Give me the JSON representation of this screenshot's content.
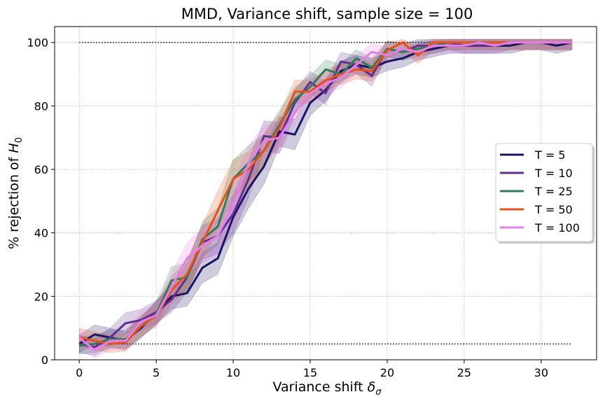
{
  "chart_data": {
    "type": "line",
    "title": "MMD, Variance shift, sample size = 100",
    "xlabel": "Variance shift",
    "xlabel_symbol": "δ",
    "xlabel_subscript": "σ",
    "ylabel": "% rejection of",
    "ylabel_symbol": "H",
    "ylabel_subscript": "0",
    "xlim": [
      -1.6,
      33.6
    ],
    "ylim": [
      0,
      105
    ],
    "xticks": [
      0,
      5,
      10,
      15,
      20,
      25,
      30
    ],
    "yticks": [
      0,
      20,
      40,
      60,
      80,
      100
    ],
    "grid": true,
    "legend_position": "center-right",
    "reference_lines": [
      {
        "y": 100,
        "x": [
          0,
          32
        ],
        "style": "dotted",
        "color": "#000000"
      },
      {
        "y": 5,
        "x": [
          0,
          32
        ],
        "style": "dotted",
        "color": "#000000"
      }
    ],
    "x": [
      0,
      1,
      2,
      3,
      4,
      5,
      6,
      7,
      8,
      9,
      10,
      11,
      12,
      13,
      14,
      15,
      16,
      17,
      18,
      19,
      20,
      21,
      22,
      23,
      24,
      25,
      26,
      27,
      28,
      29,
      30,
      31,
      32
    ],
    "series": [
      {
        "name": "T = 5",
        "color": "#1a1464",
        "values": [
          5,
          8,
          7,
          6,
          10,
          15,
          20,
          21,
          29,
          32,
          45,
          54,
          61,
          72,
          71,
          81,
          85,
          91,
          93,
          92,
          94,
          95,
          97,
          98,
          99,
          99,
          99,
          99,
          99,
          100,
          100,
          99,
          100
        ],
        "band": 5
      },
      {
        "name": "T = 10",
        "color": "#652d90",
        "values": [
          5,
          4,
          7,
          11.5,
          12.5,
          15,
          19,
          26,
          37,
          39,
          46,
          57,
          70.5,
          70,
          81,
          87.5,
          84,
          94,
          93,
          89.5,
          98,
          97,
          99,
          99,
          100,
          99,
          99,
          99,
          100,
          100,
          100,
          100,
          100
        ],
        "band": 5
      },
      {
        "name": "T = 25",
        "color": "#2d7d5a",
        "values": [
          4.5,
          5,
          6.5,
          6.5,
          10.5,
          14.5,
          25,
          26,
          38,
          42,
          57,
          62,
          66,
          74,
          82,
          86,
          91.5,
          90,
          95,
          92,
          98,
          97,
          98,
          99,
          100,
          100,
          100,
          100,
          100,
          100,
          100,
          100,
          100
        ],
        "band": 5
      },
      {
        "name": "T = 50",
        "color": "#e8501a",
        "values": [
          7,
          6,
          5,
          5.5,
          10.5,
          14,
          22,
          27,
          37,
          47,
          57,
          60,
          66,
          73,
          84.5,
          84.5,
          88,
          90,
          91.5,
          91,
          97.5,
          100,
          96,
          100,
          100,
          100,
          100,
          100,
          100,
          100,
          100,
          100,
          100
        ],
        "band": 5
      },
      {
        "name": "T = 100",
        "color": "#e87ee8",
        "values": [
          7,
          3,
          6,
          6,
          12,
          14,
          23,
          32,
          36,
          39,
          49,
          62,
          69,
          70,
          78,
          84,
          87,
          89,
          93,
          97,
          96,
          98,
          97,
          99,
          99,
          99,
          100,
          99,
          100,
          100,
          100,
          100,
          100
        ],
        "band": 5
      }
    ]
  }
}
